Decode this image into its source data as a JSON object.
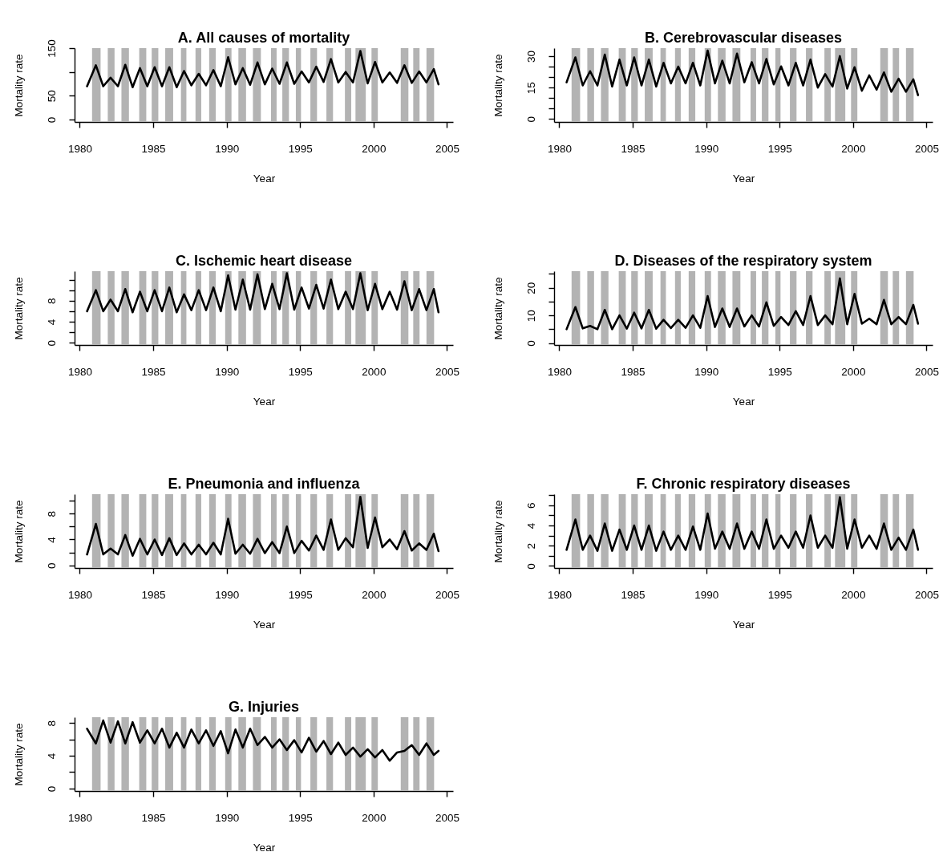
{
  "chart_data": [
    {
      "type": "line",
      "title": "A. All causes of mortality",
      "xlabel": "Year",
      "ylabel": "Mortality rate",
      "x": [
        1980.5,
        1981.1,
        1981.6,
        1982.1,
        1982.6,
        1983.1,
        1983.6,
        1984.1,
        1984.6,
        1985.1,
        1985.6,
        1986.1,
        1986.6,
        1987.1,
        1987.6,
        1988.1,
        1988.6,
        1989.1,
        1989.6,
        1990.1,
        1990.6,
        1991.1,
        1991.6,
        1992.1,
        1992.6,
        1993.1,
        1993.6,
        1994.1,
        1994.6,
        1995.1,
        1995.6,
        1996.1,
        1996.6,
        1997.1,
        1997.6,
        1998.1,
        1998.6,
        1999.1,
        1999.6,
        2000.1,
        2000.6,
        2001.1,
        2001.6,
        2002.1,
        2002.6,
        2003.1,
        2003.6,
        2004.1,
        2004.42
      ],
      "xlim": [
        1979.65,
        2005.41
      ],
      "xticks": [
        1980,
        1985,
        1990,
        1995,
        2000,
        2005
      ],
      "ylim": [
        -5,
        150
      ],
      "yticks": [
        0,
        50,
        {
          "value": 100,
          "label": null
        },
        150
      ],
      "series": [
        {
          "color": "#000000",
          "values": [
            70,
            114,
            70,
            88,
            70,
            115,
            68,
            108,
            70,
            110,
            70,
            110,
            68,
            102,
            72,
            96,
            72,
            104,
            70,
            131,
            74,
            108,
            73,
            120,
            74,
            107,
            75,
            120,
            75,
            101,
            78,
            111,
            79,
            127,
            78,
            100,
            78,
            144,
            76,
            121,
            78,
            99,
            77,
            114,
            77,
            101,
            78,
            106,
            74
          ]
        }
      ],
      "bands": [
        {
          "axis": "x",
          "from": 1980.84,
          "to": 1981.42,
          "color": "#b3b3b3"
        },
        {
          "axis": "x",
          "from": 1981.91,
          "to": 1982.37,
          "color": "#b3b3b3"
        },
        {
          "axis": "x",
          "from": 1982.84,
          "to": 1983.35,
          "color": "#b3b3b3"
        },
        {
          "axis": "x",
          "from": 1984.05,
          "to": 1984.53,
          "color": "#b3b3b3"
        },
        {
          "axis": "x",
          "from": 1984.9,
          "to": 1985.35,
          "color": "#b3b3b3"
        },
        {
          "axis": "x",
          "from": 1985.82,
          "to": 1986.36,
          "color": "#b3b3b3"
        },
        {
          "axis": "x",
          "from": 1986.89,
          "to": 1987.26,
          "color": "#b3b3b3"
        },
        {
          "axis": "x",
          "from": 1987.88,
          "to": 1988.27,
          "color": "#b3b3b3"
        },
        {
          "axis": "x",
          "from": 1988.81,
          "to": 1989.26,
          "color": "#b3b3b3"
        },
        {
          "axis": "x",
          "from": 1989.9,
          "to": 1990.33,
          "color": "#b3b3b3"
        },
        {
          "axis": "x",
          "from": 1990.8,
          "to": 1991.32,
          "color": "#b3b3b3"
        },
        {
          "axis": "x",
          "from": 1991.79,
          "to": 1992.33,
          "color": "#b3b3b3"
        },
        {
          "axis": "x",
          "from": 1993.02,
          "to": 1993.4,
          "color": "#b3b3b3"
        },
        {
          "axis": "x",
          "from": 1993.79,
          "to": 1994.24,
          "color": "#b3b3b3"
        },
        {
          "axis": "x",
          "from": 1994.71,
          "to": 1995.06,
          "color": "#b3b3b3"
        },
        {
          "axis": "x",
          "from": 1995.7,
          "to": 1996.15,
          "color": "#b3b3b3"
        },
        {
          "axis": "x",
          "from": 1996.79,
          "to": 1997.24,
          "color": "#b3b3b3"
        },
        {
          "axis": "x",
          "from": 1998.05,
          "to": 1998.48,
          "color": "#b3b3b3"
        },
        {
          "axis": "x",
          "from": 1998.77,
          "to": 1999.47,
          "color": "#b3b3b3"
        },
        {
          "axis": "x",
          "from": 1999.86,
          "to": 2000.29,
          "color": "#b3b3b3"
        },
        {
          "axis": "x",
          "from": 2001.85,
          "to": 2002.37,
          "color": "#b3b3b3"
        },
        {
          "axis": "x",
          "from": 2002.7,
          "to": 2003.13,
          "color": "#b3b3b3"
        },
        {
          "axis": "x",
          "from": 2003.6,
          "to": 2004.12,
          "color": "#b3b3b3"
        }
      ]
    },
    {
      "type": "line",
      "title": "B. Cerebrovascular diseases",
      "xlabel": "Year",
      "ylabel": "Mortality rate",
      "x": [
        1980.5,
        1981.1,
        1981.6,
        1982.1,
        1982.6,
        1983.1,
        1983.6,
        1984.1,
        1984.6,
        1985.1,
        1985.6,
        1986.1,
        1986.6,
        1987.1,
        1987.6,
        1988.1,
        1988.6,
        1989.1,
        1989.6,
        1990.1,
        1990.6,
        1991.1,
        1991.6,
        1992.1,
        1992.6,
        1993.1,
        1993.6,
        1994.1,
        1994.6,
        1995.1,
        1995.6,
        1996.1,
        1996.6,
        1997.1,
        1997.6,
        1998.1,
        1998.6,
        1999.1,
        1999.6,
        2000.1,
        2000.6,
        2001.1,
        2001.6,
        2002.1,
        2002.6,
        2003.1,
        2003.6,
        2004.1,
        2004.42
      ],
      "xlim": [
        1979.65,
        2005.41
      ],
      "xticks": [
        1980,
        1985,
        1990,
        1995,
        2000,
        2005
      ],
      "ylim": [
        -1.4,
        33.8
      ],
      "yticks": [
        0,
        {
          "value": 5,
          "label": null
        },
        {
          "value": 10,
          "label": null
        },
        15,
        {
          "value": 20,
          "label": null
        },
        {
          "value": 25,
          "label": null
        },
        30
      ],
      "series": [
        {
          "color": "#000000",
          "values": [
            17.5,
            29.4,
            16,
            22.8,
            16,
            30.7,
            15.5,
            28.3,
            16,
            29.4,
            16,
            28.3,
            15.5,
            26.8,
            17,
            25,
            17,
            26.8,
            16,
            32.6,
            17,
            27.8,
            17,
            31.2,
            17.5,
            27.1,
            17,
            28.6,
            16.5,
            25.1,
            16,
            26.8,
            16,
            28.3,
            15,
            21.4,
            15.5,
            30,
            14.5,
            24.7,
            13.5,
            20.8,
            14,
            22.2,
            13,
            19.2,
            13,
            18.9,
            11.4
          ]
        }
      ],
      "bands": [
        {
          "axis": "x",
          "from": 1980.84,
          "to": 1981.42,
          "color": "#b3b3b3"
        },
        {
          "axis": "x",
          "from": 1981.91,
          "to": 1982.37,
          "color": "#b3b3b3"
        },
        {
          "axis": "x",
          "from": 1982.84,
          "to": 1983.35,
          "color": "#b3b3b3"
        },
        {
          "axis": "x",
          "from": 1984.05,
          "to": 1984.53,
          "color": "#b3b3b3"
        },
        {
          "axis": "x",
          "from": 1984.9,
          "to": 1985.35,
          "color": "#b3b3b3"
        },
        {
          "axis": "x",
          "from": 1985.82,
          "to": 1986.36,
          "color": "#b3b3b3"
        },
        {
          "axis": "x",
          "from": 1986.89,
          "to": 1987.26,
          "color": "#b3b3b3"
        },
        {
          "axis": "x",
          "from": 1987.88,
          "to": 1988.27,
          "color": "#b3b3b3"
        },
        {
          "axis": "x",
          "from": 1988.81,
          "to": 1989.26,
          "color": "#b3b3b3"
        },
        {
          "axis": "x",
          "from": 1989.9,
          "to": 1990.33,
          "color": "#b3b3b3"
        },
        {
          "axis": "x",
          "from": 1990.8,
          "to": 1991.32,
          "color": "#b3b3b3"
        },
        {
          "axis": "x",
          "from": 1991.79,
          "to": 1992.33,
          "color": "#b3b3b3"
        },
        {
          "axis": "x",
          "from": 1993.02,
          "to": 1993.4,
          "color": "#b3b3b3"
        },
        {
          "axis": "x",
          "from": 1993.79,
          "to": 1994.24,
          "color": "#b3b3b3"
        },
        {
          "axis": "x",
          "from": 1994.71,
          "to": 1995.06,
          "color": "#b3b3b3"
        },
        {
          "axis": "x",
          "from": 1995.7,
          "to": 1996.15,
          "color": "#b3b3b3"
        },
        {
          "axis": "x",
          "from": 1996.79,
          "to": 1997.24,
          "color": "#b3b3b3"
        },
        {
          "axis": "x",
          "from": 1998.05,
          "to": 1998.48,
          "color": "#b3b3b3"
        },
        {
          "axis": "x",
          "from": 1998.77,
          "to": 1999.47,
          "color": "#b3b3b3"
        },
        {
          "axis": "x",
          "from": 1999.86,
          "to": 2000.29,
          "color": "#b3b3b3"
        },
        {
          "axis": "x",
          "from": 2001.85,
          "to": 2002.37,
          "color": "#b3b3b3"
        },
        {
          "axis": "x",
          "from": 2002.7,
          "to": 2003.13,
          "color": "#b3b3b3"
        },
        {
          "axis": "x",
          "from": 2003.6,
          "to": 2004.12,
          "color": "#b3b3b3"
        }
      ]
    },
    {
      "type": "line",
      "title": "C. Ischemic heart disease",
      "xlabel": "Year",
      "ylabel": "Mortality rate",
      "x": [
        1980.5,
        1981.1,
        1981.6,
        1982.1,
        1982.6,
        1983.1,
        1983.6,
        1984.1,
        1984.6,
        1985.1,
        1985.6,
        1986.1,
        1986.6,
        1987.1,
        1987.6,
        1988.1,
        1988.6,
        1989.1,
        1989.6,
        1990.1,
        1990.6,
        1991.1,
        1991.6,
        1992.1,
        1992.6,
        1993.1,
        1993.6,
        1994.1,
        1994.6,
        1995.1,
        1995.6,
        1996.1,
        1996.6,
        1997.1,
        1997.6,
        1998.1,
        1998.6,
        1999.1,
        1999.6,
        2000.1,
        2000.6,
        2001.1,
        2001.6,
        2002.1,
        2002.6,
        2003.1,
        2003.6,
        2004.1,
        2004.42
      ],
      "xlim": [
        1979.65,
        2005.41
      ],
      "xticks": [
        1980,
        1985,
        1990,
        1995,
        2000,
        2005
      ],
      "ylim": [
        -0.4,
        13.6
      ],
      "yticks": [
        0,
        {
          "value": 2,
          "label": null
        },
        4,
        {
          "value": 6,
          "label": null
        },
        8,
        {
          "value": 10,
          "label": null
        },
        {
          "value": 12,
          "label": null
        }
      ],
      "series": [
        {
          "color": "#000000",
          "values": [
            6,
            10,
            6,
            8.2,
            6,
            10.2,
            5.8,
            9.7,
            6,
            10,
            6,
            10.5,
            5.8,
            9.2,
            6.2,
            10,
            6.2,
            10.5,
            6,
            12.8,
            6.3,
            12,
            6.3,
            13,
            6.4,
            11.2,
            6.4,
            13.2,
            6.3,
            10.5,
            6.5,
            11,
            6.5,
            12,
            6.4,
            9.7,
            6.4,
            13.2,
            6.2,
            11.2,
            6.4,
            9.7,
            6.3,
            11.7,
            6.2,
            10.2,
            6.2,
            10.2,
            5.8
          ]
        }
      ],
      "bands": [
        {
          "axis": "x",
          "from": 1980.84,
          "to": 1981.42,
          "color": "#b3b3b3"
        },
        {
          "axis": "x",
          "from": 1981.91,
          "to": 1982.37,
          "color": "#b3b3b3"
        },
        {
          "axis": "x",
          "from": 1982.84,
          "to": 1983.35,
          "color": "#b3b3b3"
        },
        {
          "axis": "x",
          "from": 1984.05,
          "to": 1984.53,
          "color": "#b3b3b3"
        },
        {
          "axis": "x",
          "from": 1984.9,
          "to": 1985.35,
          "color": "#b3b3b3"
        },
        {
          "axis": "x",
          "from": 1985.82,
          "to": 1986.36,
          "color": "#b3b3b3"
        },
        {
          "axis": "x",
          "from": 1986.89,
          "to": 1987.26,
          "color": "#b3b3b3"
        },
        {
          "axis": "x",
          "from": 1987.88,
          "to": 1988.27,
          "color": "#b3b3b3"
        },
        {
          "axis": "x",
          "from": 1988.81,
          "to": 1989.26,
          "color": "#b3b3b3"
        },
        {
          "axis": "x",
          "from": 1989.9,
          "to": 1990.33,
          "color": "#b3b3b3"
        },
        {
          "axis": "x",
          "from": 1990.8,
          "to": 1991.32,
          "color": "#b3b3b3"
        },
        {
          "axis": "x",
          "from": 1991.79,
          "to": 1992.33,
          "color": "#b3b3b3"
        },
        {
          "axis": "x",
          "from": 1993.02,
          "to": 1993.4,
          "color": "#b3b3b3"
        },
        {
          "axis": "x",
          "from": 1993.79,
          "to": 1994.24,
          "color": "#b3b3b3"
        },
        {
          "axis": "x",
          "from": 1994.71,
          "to": 1995.06,
          "color": "#b3b3b3"
        },
        {
          "axis": "x",
          "from": 1995.7,
          "to": 1996.15,
          "color": "#b3b3b3"
        },
        {
          "axis": "x",
          "from": 1996.79,
          "to": 1997.24,
          "color": "#b3b3b3"
        },
        {
          "axis": "x",
          "from": 1998.05,
          "to": 1998.48,
          "color": "#b3b3b3"
        },
        {
          "axis": "x",
          "from": 1998.77,
          "to": 1999.47,
          "color": "#b3b3b3"
        },
        {
          "axis": "x",
          "from": 1999.86,
          "to": 2000.29,
          "color": "#b3b3b3"
        },
        {
          "axis": "x",
          "from": 2001.85,
          "to": 2002.37,
          "color": "#b3b3b3"
        },
        {
          "axis": "x",
          "from": 2002.7,
          "to": 2003.13,
          "color": "#b3b3b3"
        },
        {
          "axis": "x",
          "from": 2003.6,
          "to": 2004.12,
          "color": "#b3b3b3"
        }
      ]
    },
    {
      "type": "line",
      "title": "D. Diseases of the respiratory system",
      "xlabel": "Year",
      "ylabel": "Mortality rate",
      "x": [
        1980.5,
        1981.1,
        1981.6,
        1982.1,
        1982.6,
        1983.1,
        1983.6,
        1984.1,
        1984.6,
        1985.1,
        1985.6,
        1986.1,
        1986.6,
        1987.1,
        1987.6,
        1988.1,
        1988.6,
        1989.1,
        1989.6,
        1990.1,
        1990.6,
        1991.1,
        1991.6,
        1992.1,
        1992.6,
        1993.1,
        1993.6,
        1994.1,
        1994.6,
        1995.1,
        1995.6,
        1996.1,
        1996.6,
        1997.1,
        1997.6,
        1998.1,
        1998.6,
        1999.1,
        1999.6,
        2000.1,
        2000.6,
        2001.1,
        2001.6,
        2002.1,
        2002.6,
        2003.1,
        2003.6,
        2004.1,
        2004.42
      ],
      "xlim": [
        1979.65,
        2005.41
      ],
      "xticks": [
        1980,
        1985,
        1990,
        1995,
        2000,
        2005
      ],
      "ylim": [
        -0.7,
        26
      ],
      "yticks": [
        0,
        {
          "value": 5,
          "label": null
        },
        10,
        {
          "value": 15,
          "label": null
        },
        20,
        {
          "value": 25,
          "label": null
        }
      ],
      "series": [
        {
          "color": "#000000",
          "values": [
            5,
            13,
            5.3,
            6.2,
            5,
            12,
            5,
            10,
            5.2,
            11,
            5.3,
            12,
            5.2,
            8.4,
            5.4,
            8.4,
            5.5,
            10,
            5.5,
            17,
            5.8,
            12.5,
            5.8,
            12.5,
            6,
            10,
            6,
            14.7,
            6.2,
            9.4,
            6.5,
            11.5,
            6.5,
            17,
            6.5,
            10,
            6.8,
            23.4,
            6.8,
            17.8,
            7,
            8.8,
            6.8,
            15.6,
            6.8,
            9.4,
            6.8,
            13.8,
            7
          ]
        }
      ],
      "bands": [
        {
          "axis": "x",
          "from": 1980.84,
          "to": 1981.42,
          "color": "#b3b3b3"
        },
        {
          "axis": "x",
          "from": 1981.91,
          "to": 1982.37,
          "color": "#b3b3b3"
        },
        {
          "axis": "x",
          "from": 1982.84,
          "to": 1983.35,
          "color": "#b3b3b3"
        },
        {
          "axis": "x",
          "from": 1984.05,
          "to": 1984.53,
          "color": "#b3b3b3"
        },
        {
          "axis": "x",
          "from": 1984.9,
          "to": 1985.35,
          "color": "#b3b3b3"
        },
        {
          "axis": "x",
          "from": 1985.82,
          "to": 1986.36,
          "color": "#b3b3b3"
        },
        {
          "axis": "x",
          "from": 1986.89,
          "to": 1987.26,
          "color": "#b3b3b3"
        },
        {
          "axis": "x",
          "from": 1987.88,
          "to": 1988.27,
          "color": "#b3b3b3"
        },
        {
          "axis": "x",
          "from": 1988.81,
          "to": 1989.26,
          "color": "#b3b3b3"
        },
        {
          "axis": "x",
          "from": 1989.9,
          "to": 1990.33,
          "color": "#b3b3b3"
        },
        {
          "axis": "x",
          "from": 1990.8,
          "to": 1991.32,
          "color": "#b3b3b3"
        },
        {
          "axis": "x",
          "from": 1991.79,
          "to": 1992.33,
          "color": "#b3b3b3"
        },
        {
          "axis": "x",
          "from": 1993.02,
          "to": 1993.4,
          "color": "#b3b3b3"
        },
        {
          "axis": "x",
          "from": 1993.79,
          "to": 1994.24,
          "color": "#b3b3b3"
        },
        {
          "axis": "x",
          "from": 1994.71,
          "to": 1995.06,
          "color": "#b3b3b3"
        },
        {
          "axis": "x",
          "from": 1995.7,
          "to": 1996.15,
          "color": "#b3b3b3"
        },
        {
          "axis": "x",
          "from": 1996.79,
          "to": 1997.24,
          "color": "#b3b3b3"
        },
        {
          "axis": "x",
          "from": 1998.05,
          "to": 1998.48,
          "color": "#b3b3b3"
        },
        {
          "axis": "x",
          "from": 1998.77,
          "to": 1999.47,
          "color": "#b3b3b3"
        },
        {
          "axis": "x",
          "from": 1999.86,
          "to": 2000.29,
          "color": "#b3b3b3"
        },
        {
          "axis": "x",
          "from": 2001.85,
          "to": 2002.37,
          "color": "#b3b3b3"
        },
        {
          "axis": "x",
          "from": 2002.7,
          "to": 2003.13,
          "color": "#b3b3b3"
        },
        {
          "axis": "x",
          "from": 2003.6,
          "to": 2004.12,
          "color": "#b3b3b3"
        }
      ]
    },
    {
      "type": "line",
      "title": "E. Pneumonia and influenza",
      "xlabel": "Year",
      "ylabel": "Mortality rate",
      "x": [
        1980.5,
        1981.1,
        1981.6,
        1982.1,
        1982.6,
        1983.1,
        1983.6,
        1984.1,
        1984.6,
        1985.1,
        1985.6,
        1986.1,
        1986.6,
        1987.1,
        1987.6,
        1988.1,
        1988.6,
        1989.1,
        1989.6,
        1990.1,
        1990.6,
        1991.1,
        1991.6,
        1992.1,
        1992.6,
        1993.1,
        1993.6,
        1994.1,
        1994.6,
        1995.1,
        1995.6,
        1996.1,
        1996.6,
        1997.1,
        1997.6,
        1998.1,
        1998.6,
        1999.1,
        1999.6,
        2000.1,
        2000.6,
        2001.1,
        2001.6,
        2002.1,
        2002.6,
        2003.1,
        2003.6,
        2004.1,
        2004.42
      ],
      "xlim": [
        1979.65,
        2005.41
      ],
      "xticks": [
        1980,
        1985,
        1990,
        1995,
        2000,
        2005
      ],
      "ylim": [
        -0.4,
        11
      ],
      "yticks": [
        0,
        {
          "value": 2,
          "label": null
        },
        4,
        {
          "value": 6,
          "label": null
        },
        8,
        {
          "value": 10,
          "label": null
        }
      ],
      "series": [
        {
          "color": "#000000",
          "values": [
            1.7,
            6.4,
            1.7,
            2.6,
            1.7,
            4.7,
            1.5,
            4.1,
            1.7,
            4,
            1.6,
            4.2,
            1.6,
            3.4,
            1.7,
            3.2,
            1.7,
            3.5,
            1.7,
            7.2,
            1.8,
            3.2,
            1.8,
            4.1,
            1.9,
            3.6,
            1.9,
            6,
            1.9,
            3.8,
            2.3,
            4.6,
            2.4,
            7.1,
            2.4,
            4.2,
            2.8,
            10.6,
            2.7,
            7.4,
            2.8,
            4,
            2.5,
            5.3,
            2.3,
            3.4,
            2.4,
            4.9,
            2.2
          ]
        }
      ],
      "bands": [
        {
          "axis": "x",
          "from": 1980.84,
          "to": 1981.42,
          "color": "#b3b3b3"
        },
        {
          "axis": "x",
          "from": 1981.91,
          "to": 1982.37,
          "color": "#b3b3b3"
        },
        {
          "axis": "x",
          "from": 1982.84,
          "to": 1983.35,
          "color": "#b3b3b3"
        },
        {
          "axis": "x",
          "from": 1984.05,
          "to": 1984.53,
          "color": "#b3b3b3"
        },
        {
          "axis": "x",
          "from": 1984.9,
          "to": 1985.35,
          "color": "#b3b3b3"
        },
        {
          "axis": "x",
          "from": 1985.82,
          "to": 1986.36,
          "color": "#b3b3b3"
        },
        {
          "axis": "x",
          "from": 1986.89,
          "to": 1987.26,
          "color": "#b3b3b3"
        },
        {
          "axis": "x",
          "from": 1987.88,
          "to": 1988.27,
          "color": "#b3b3b3"
        },
        {
          "axis": "x",
          "from": 1988.81,
          "to": 1989.26,
          "color": "#b3b3b3"
        },
        {
          "axis": "x",
          "from": 1989.9,
          "to": 1990.33,
          "color": "#b3b3b3"
        },
        {
          "axis": "x",
          "from": 1990.8,
          "to": 1991.32,
          "color": "#b3b3b3"
        },
        {
          "axis": "x",
          "from": 1991.79,
          "to": 1992.33,
          "color": "#b3b3b3"
        },
        {
          "axis": "x",
          "from": 1993.02,
          "to": 1993.4,
          "color": "#b3b3b3"
        },
        {
          "axis": "x",
          "from": 1993.79,
          "to": 1994.24,
          "color": "#b3b3b3"
        },
        {
          "axis": "x",
          "from": 1994.71,
          "to": 1995.06,
          "color": "#b3b3b3"
        },
        {
          "axis": "x",
          "from": 1995.7,
          "to": 1996.15,
          "color": "#b3b3b3"
        },
        {
          "axis": "x",
          "from": 1996.79,
          "to": 1997.24,
          "color": "#b3b3b3"
        },
        {
          "axis": "x",
          "from": 1998.05,
          "to": 1998.48,
          "color": "#b3b3b3"
        },
        {
          "axis": "x",
          "from": 1998.77,
          "to": 1999.47,
          "color": "#b3b3b3"
        },
        {
          "axis": "x",
          "from": 1999.86,
          "to": 2000.29,
          "color": "#b3b3b3"
        },
        {
          "axis": "x",
          "from": 2001.85,
          "to": 2002.37,
          "color": "#b3b3b3"
        },
        {
          "axis": "x",
          "from": 2002.7,
          "to": 2003.13,
          "color": "#b3b3b3"
        },
        {
          "axis": "x",
          "from": 2003.6,
          "to": 2004.12,
          "color": "#b3b3b3"
        }
      ]
    },
    {
      "type": "line",
      "title": "F. Chronic respiratory diseases",
      "xlabel": "Year",
      "ylabel": "Mortality rate",
      "x": [
        1980.5,
        1981.1,
        1981.6,
        1982.1,
        1982.6,
        1983.1,
        1983.6,
        1984.1,
        1984.6,
        1985.1,
        1985.6,
        1986.1,
        1986.6,
        1987.1,
        1987.6,
        1988.1,
        1988.6,
        1989.1,
        1989.6,
        1990.1,
        1990.6,
        1991.1,
        1991.6,
        1992.1,
        1992.6,
        1993.1,
        1993.6,
        1994.1,
        1994.6,
        1995.1,
        1995.6,
        1996.1,
        1996.6,
        1997.1,
        1997.6,
        1998.1,
        1998.6,
        1999.1,
        1999.6,
        2000.1,
        2000.6,
        2001.1,
        2001.6,
        2002.1,
        2002.6,
        2003.1,
        2003.6,
        2004.1,
        2004.42
      ],
      "xlim": [
        1979.65,
        2005.41
      ],
      "xticks": [
        1980,
        1985,
        1990,
        1995,
        2000,
        2005
      ],
      "ylim": [
        -0.2,
        7.1
      ],
      "yticks": [
        0,
        {
          "value": 1,
          "label": null
        },
        2,
        {
          "value": 3,
          "label": null
        },
        4,
        {
          "value": 5,
          "label": null
        },
        6,
        {
          "value": 7,
          "label": null
        }
      ],
      "series": [
        {
          "color": "#000000",
          "values": [
            1.6,
            4.6,
            1.6,
            3,
            1.5,
            4.2,
            1.5,
            3.6,
            1.6,
            4,
            1.6,
            4,
            1.5,
            3.4,
            1.6,
            3,
            1.6,
            3.9,
            1.6,
            5.2,
            1.7,
            3.4,
            1.7,
            4.2,
            1.7,
            3.4,
            1.7,
            4.6,
            1.7,
            3,
            1.8,
            3.4,
            1.8,
            5,
            1.8,
            3,
            1.8,
            6.8,
            1.7,
            4.6,
            1.8,
            3,
            1.7,
            4.2,
            1.6,
            2.8,
            1.6,
            3.6,
            1.6
          ]
        }
      ],
      "bands": [
        {
          "axis": "x",
          "from": 1980.84,
          "to": 1981.42,
          "color": "#b3b3b3"
        },
        {
          "axis": "x",
          "from": 1981.91,
          "to": 1982.37,
          "color": "#b3b3b3"
        },
        {
          "axis": "x",
          "from": 1982.84,
          "to": 1983.35,
          "color": "#b3b3b3"
        },
        {
          "axis": "x",
          "from": 1984.05,
          "to": 1984.53,
          "color": "#b3b3b3"
        },
        {
          "axis": "x",
          "from": 1984.9,
          "to": 1985.35,
          "color": "#b3b3b3"
        },
        {
          "axis": "x",
          "from": 1985.82,
          "to": 1986.36,
          "color": "#b3b3b3"
        },
        {
          "axis": "x",
          "from": 1986.89,
          "to": 1987.26,
          "color": "#b3b3b3"
        },
        {
          "axis": "x",
          "from": 1987.88,
          "to": 1988.27,
          "color": "#b3b3b3"
        },
        {
          "axis": "x",
          "from": 1988.81,
          "to": 1989.26,
          "color": "#b3b3b3"
        },
        {
          "axis": "x",
          "from": 1989.9,
          "to": 1990.33,
          "color": "#b3b3b3"
        },
        {
          "axis": "x",
          "from": 1990.8,
          "to": 1991.32,
          "color": "#b3b3b3"
        },
        {
          "axis": "x",
          "from": 1991.79,
          "to": 1992.33,
          "color": "#b3b3b3"
        },
        {
          "axis": "x",
          "from": 1993.02,
          "to": 1993.4,
          "color": "#b3b3b3"
        },
        {
          "axis": "x",
          "from": 1993.79,
          "to": 1994.24,
          "color": "#b3b3b3"
        },
        {
          "axis": "x",
          "from": 1994.71,
          "to": 1995.06,
          "color": "#b3b3b3"
        },
        {
          "axis": "x",
          "from": 1995.7,
          "to": 1996.15,
          "color": "#b3b3b3"
        },
        {
          "axis": "x",
          "from": 1996.79,
          "to": 1997.24,
          "color": "#b3b3b3"
        },
        {
          "axis": "x",
          "from": 1998.05,
          "to": 1998.48,
          "color": "#b3b3b3"
        },
        {
          "axis": "x",
          "from": 1998.77,
          "to": 1999.47,
          "color": "#b3b3b3"
        },
        {
          "axis": "x",
          "from": 1999.86,
          "to": 2000.29,
          "color": "#b3b3b3"
        },
        {
          "axis": "x",
          "from": 2001.85,
          "to": 2002.37,
          "color": "#b3b3b3"
        },
        {
          "axis": "x",
          "from": 2002.7,
          "to": 2003.13,
          "color": "#b3b3b3"
        },
        {
          "axis": "x",
          "from": 2003.6,
          "to": 2004.12,
          "color": "#b3b3b3"
        }
      ]
    },
    {
      "type": "line",
      "title": "G. Injuries",
      "xlabel": "Year",
      "ylabel": "Mortality rate",
      "x": [
        1980.5,
        1981.1,
        1981.6,
        1982.1,
        1982.6,
        1983.1,
        1983.6,
        1984.1,
        1984.6,
        1985.1,
        1985.6,
        1986.1,
        1986.6,
        1987.1,
        1987.6,
        1988.1,
        1988.6,
        1989.1,
        1989.6,
        1990.1,
        1990.6,
        1991.1,
        1991.6,
        1992.1,
        1992.6,
        1993.1,
        1993.6,
        1994.1,
        1994.6,
        1995.1,
        1995.6,
        1996.1,
        1996.6,
        1997.1,
        1997.6,
        1998.1,
        1998.6,
        1999.1,
        1999.6,
        2000.1,
        2000.6,
        2001.1,
        2001.6,
        2002.1,
        2002.6,
        2003.1,
        2003.6,
        2004.1,
        2004.42
      ],
      "xlim": [
        1979.65,
        2005.41
      ],
      "xticks": [
        1980,
        1985,
        1990,
        1995,
        2000,
        2005
      ],
      "ylim": [
        -0.3,
        8.7
      ],
      "yticks": [
        0,
        {
          "value": 2,
          "label": null
        },
        4,
        {
          "value": 6,
          "label": null
        },
        8
      ],
      "series": [
        {
          "color": "#000000",
          "values": [
            7.3,
            5.5,
            8.3,
            5.6,
            8.2,
            5.5,
            8.1,
            5.6,
            7.1,
            5.5,
            7.3,
            5,
            6.8,
            5,
            7.2,
            5.5,
            7.1,
            5.2,
            7,
            4.3,
            7.2,
            5,
            7.3,
            5.3,
            6.3,
            5,
            6,
            4.7,
            5.9,
            4.4,
            6.2,
            4.5,
            5.8,
            4.2,
            5.6,
            4.1,
            5,
            3.9,
            4.8,
            3.8,
            4.7,
            3.4,
            4.4,
            4.6,
            5.3,
            4.1,
            5.5,
            4.1,
            4.6
          ]
        }
      ],
      "bands": [
        {
          "axis": "x",
          "from": 1980.84,
          "to": 1981.42,
          "color": "#b3b3b3"
        },
        {
          "axis": "x",
          "from": 1981.91,
          "to": 1982.37,
          "color": "#b3b3b3"
        },
        {
          "axis": "x",
          "from": 1982.84,
          "to": 1983.35,
          "color": "#b3b3b3"
        },
        {
          "axis": "x",
          "from": 1984.05,
          "to": 1984.53,
          "color": "#b3b3b3"
        },
        {
          "axis": "x",
          "from": 1984.9,
          "to": 1985.35,
          "color": "#b3b3b3"
        },
        {
          "axis": "x",
          "from": 1985.82,
          "to": 1986.36,
          "color": "#b3b3b3"
        },
        {
          "axis": "x",
          "from": 1986.89,
          "to": 1987.26,
          "color": "#b3b3b3"
        },
        {
          "axis": "x",
          "from": 1987.88,
          "to": 1988.27,
          "color": "#b3b3b3"
        },
        {
          "axis": "x",
          "from": 1988.81,
          "to": 1989.26,
          "color": "#b3b3b3"
        },
        {
          "axis": "x",
          "from": 1989.9,
          "to": 1990.33,
          "color": "#b3b3b3"
        },
        {
          "axis": "x",
          "from": 1990.8,
          "to": 1991.32,
          "color": "#b3b3b3"
        },
        {
          "axis": "x",
          "from": 1991.79,
          "to": 1992.33,
          "color": "#b3b3b3"
        },
        {
          "axis": "x",
          "from": 1993.02,
          "to": 1993.4,
          "color": "#b3b3b3"
        },
        {
          "axis": "x",
          "from": 1993.79,
          "to": 1994.24,
          "color": "#b3b3b3"
        },
        {
          "axis": "x",
          "from": 1994.71,
          "to": 1995.06,
          "color": "#b3b3b3"
        },
        {
          "axis": "x",
          "from": 1995.7,
          "to": 1996.15,
          "color": "#b3b3b3"
        },
        {
          "axis": "x",
          "from": 1996.79,
          "to": 1997.24,
          "color": "#b3b3b3"
        },
        {
          "axis": "x",
          "from": 1998.05,
          "to": 1998.48,
          "color": "#b3b3b3"
        },
        {
          "axis": "x",
          "from": 1998.77,
          "to": 1999.47,
          "color": "#b3b3b3"
        },
        {
          "axis": "x",
          "from": 1999.86,
          "to": 2000.29,
          "color": "#b3b3b3"
        },
        {
          "axis": "x",
          "from": 2001.85,
          "to": 2002.37,
          "color": "#b3b3b3"
        },
        {
          "axis": "x",
          "from": 2002.7,
          "to": 2003.13,
          "color": "#b3b3b3"
        },
        {
          "axis": "x",
          "from": 2003.6,
          "to": 2004.12,
          "color": "#b3b3b3"
        }
      ]
    }
  ]
}
